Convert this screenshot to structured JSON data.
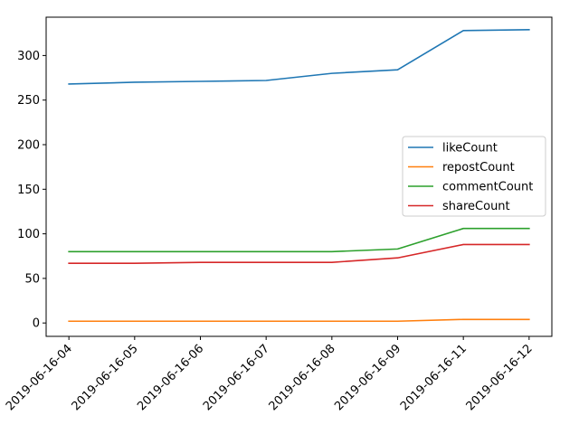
{
  "chart_data": {
    "type": "line",
    "title": "",
    "xlabel": "",
    "ylabel": "",
    "x": [
      "2019-06-16-04",
      "2019-06-16-05",
      "2019-06-16-06",
      "2019-06-16-07",
      "2019-06-16-08",
      "2019-06-16-09",
      "2019-06-16-11",
      "2019-06-16-12"
    ],
    "ylim": [
      -15,
      343
    ],
    "yticks": [
      0,
      50,
      100,
      150,
      200,
      250,
      300
    ],
    "grid": false,
    "legend_position": "center-right",
    "series": [
      {
        "name": "likeCount",
        "color": "#1f77b4",
        "values": [
          268,
          270,
          271,
          272,
          280,
          284,
          328,
          329
        ]
      },
      {
        "name": "repostCount",
        "color": "#ff7f0e",
        "values": [
          2,
          2,
          2,
          2,
          2,
          2,
          4,
          4
        ]
      },
      {
        "name": "commentCount",
        "color": "#2ca02c",
        "values": [
          80,
          80,
          80,
          80,
          80,
          83,
          106,
          106
        ]
      },
      {
        "name": "shareCount",
        "color": "#d62728",
        "values": [
          67,
          67,
          68,
          68,
          68,
          73,
          88,
          88
        ]
      }
    ]
  }
}
